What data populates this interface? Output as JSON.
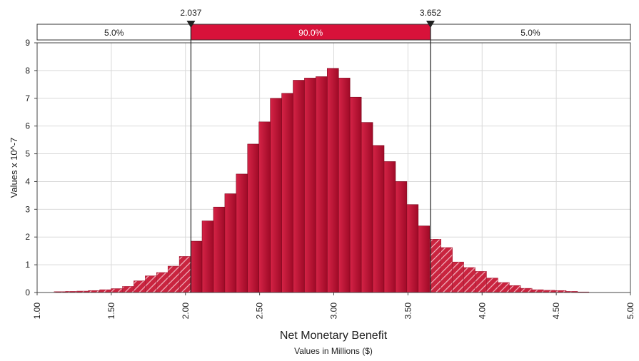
{
  "chart_data": {
    "type": "bar",
    "title": "",
    "xlabel": "Net Monetary Benefit",
    "xlabel_sub": "Values in Millions ($)",
    "ylabel": "Values x 10^-7",
    "xlim": [
      1.0,
      5.0
    ],
    "ylim": [
      0,
      9
    ],
    "x_ticks": [
      "1.00",
      "1.50",
      "2.00",
      "2.50",
      "3.00",
      "3.50",
      "4.00",
      "4.50",
      "5.00"
    ],
    "y_ticks": [
      "0",
      "1",
      "2",
      "3",
      "4",
      "5",
      "6",
      "7",
      "8",
      "9"
    ],
    "grid": true,
    "bin_width": 0.0767,
    "bin_start": 1.115,
    "values": [
      0.03,
      0.04,
      0.05,
      0.07,
      0.1,
      0.14,
      0.22,
      0.42,
      0.6,
      0.72,
      0.95,
      1.3,
      1.85,
      2.58,
      3.08,
      3.56,
      4.27,
      5.35,
      6.15,
      7.0,
      7.18,
      7.65,
      7.73,
      7.78,
      8.08,
      7.73,
      7.04,
      6.13,
      5.3,
      4.72,
      4.0,
      3.17,
      2.4,
      1.92,
      1.62,
      1.1,
      0.9,
      0.76,
      0.52,
      0.36,
      0.25,
      0.15,
      0.1,
      0.08,
      0.07,
      0.04,
      0.02
    ],
    "markers": {
      "left_value": 2.037,
      "right_value": 3.652,
      "left_label": "2.037",
      "right_label": "3.652"
    },
    "bands": {
      "left": "5.0%",
      "middle": "90.0%",
      "right": "5.0%"
    },
    "colors": {
      "bar_fill": "#be1131",
      "bar_fill_light": "#d63a55",
      "middle_band": "#d8123a",
      "grid": "#d9d9d9",
      "marker": "#222222"
    }
  }
}
